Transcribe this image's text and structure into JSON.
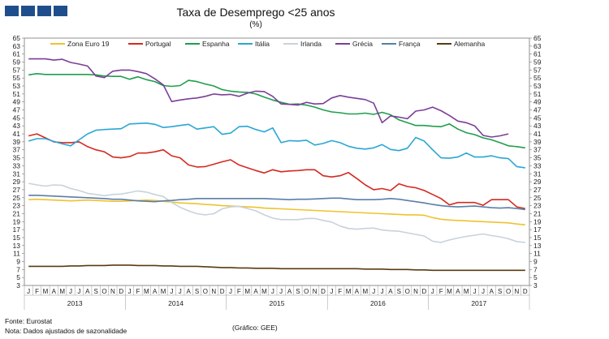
{
  "header": {
    "title": "Taxa de Desemprego <25 anos",
    "subtitle": "(%)"
  },
  "footer": {
    "source": "Fonte: Eurostat",
    "note": "Nota: Dados ajustados de sazonalidade",
    "credit": "(Gráfico: GEE)"
  },
  "chart_data": {
    "type": "line",
    "title": "Taxa de Desemprego <25 anos",
    "ylabel": "(%)",
    "ylim": [
      3,
      65
    ],
    "yticks": [
      3,
      5,
      7,
      9,
      11,
      13,
      15,
      17,
      19,
      21,
      23,
      25,
      27,
      29,
      31,
      33,
      35,
      37,
      39,
      41,
      43,
      45,
      47,
      49,
      51,
      53,
      55,
      57,
      59,
      61,
      63,
      65
    ],
    "months": [
      "J",
      "F",
      "M",
      "A",
      "M",
      "J",
      "J",
      "A",
      "S",
      "O",
      "N",
      "D"
    ],
    "years": [
      "2013",
      "2014",
      "2015",
      "2016",
      "2017"
    ],
    "grid": false,
    "legend_position": "top",
    "series": [
      {
        "name": "Zona Euro 19",
        "color": "#f0c22e",
        "values": [
          24.5,
          24.6,
          24.5,
          24.4,
          24.3,
          24.2,
          24.3,
          24.4,
          24.3,
          24.2,
          24.1,
          24.1,
          24.2,
          24.3,
          24.4,
          24.3,
          24.1,
          23.9,
          23.7,
          23.6,
          23.5,
          23.3,
          23.2,
          23.0,
          22.9,
          22.8,
          22.7,
          22.6,
          22.4,
          22.3,
          22.2,
          22.1,
          22.0,
          21.9,
          21.8,
          21.7,
          21.6,
          21.5,
          21.4,
          21.3,
          21.2,
          21.1,
          21.0,
          20.9,
          20.8,
          20.7,
          20.7,
          20.6,
          20.0,
          19.6,
          19.4,
          19.3,
          19.2,
          19.1,
          19.0,
          18.9,
          18.8,
          18.7,
          18.4,
          18.2
        ]
      },
      {
        "name": "Portugal",
        "color": "#d42a20",
        "values": [
          40.5,
          41.0,
          40.0,
          39.0,
          38.8,
          38.8,
          39.0,
          37.8,
          37.0,
          36.5,
          35.2,
          35.0,
          35.3,
          36.2,
          36.2,
          36.5,
          37.0,
          35.5,
          35.0,
          33.2,
          32.7,
          32.8,
          33.4,
          34.0,
          34.5,
          33.2,
          32.5,
          31.8,
          31.2,
          32.0,
          31.5,
          31.7,
          31.8,
          32.0,
          32.0,
          30.5,
          30.2,
          30.5,
          31.3,
          29.8,
          28.2,
          27.0,
          27.3,
          26.8,
          28.5,
          27.8,
          27.5,
          26.8,
          25.8,
          24.8,
          23.2,
          23.8,
          23.8,
          23.8,
          23.1,
          24.5,
          24.5,
          24.5,
          22.7,
          22.3
        ]
      },
      {
        "name": "Espanha",
        "color": "#1f9e4c",
        "values": [
          55.8,
          56.1,
          55.9,
          55.9,
          55.9,
          55.9,
          55.9,
          55.9,
          55.8,
          55.5,
          55.4,
          55.4,
          54.7,
          55.3,
          54.6,
          54.1,
          53.1,
          52.9,
          53.1,
          54.4,
          54.1,
          53.5,
          53.0,
          52.1,
          51.7,
          51.5,
          51.4,
          51.0,
          50.2,
          49.5,
          48.9,
          48.4,
          48.5,
          48.2,
          47.7,
          47.0,
          46.5,
          46.3,
          46.0,
          46.0,
          46.2,
          45.9,
          46.4,
          45.8,
          44.5,
          43.8,
          43.1,
          43.1,
          42.9,
          42.8,
          43.5,
          42.2,
          41.3,
          40.8,
          40.0,
          39.5,
          38.8,
          38.0,
          37.8,
          37.5
        ]
      },
      {
        "name": "Itália",
        "color": "#2aa6d6",
        "values": [
          39.2,
          39.8,
          39.8,
          39.1,
          38.5,
          38.0,
          39.5,
          41.0,
          41.9,
          42.1,
          42.2,
          42.3,
          43.5,
          43.6,
          43.7,
          43.4,
          42.6,
          42.8,
          43.1,
          43.4,
          42.2,
          42.5,
          42.8,
          40.9,
          41.2,
          42.8,
          42.9,
          42.1,
          41.5,
          42.5,
          38.8,
          39.3,
          39.2,
          39.4,
          38.2,
          38.6,
          39.3,
          38.8,
          37.9,
          37.4,
          37.2,
          37.5,
          38.3,
          37.1,
          36.8,
          37.4,
          40.1,
          39.2,
          37.0,
          35.0,
          34.9,
          35.2,
          36.2,
          35.2,
          35.2,
          35.5,
          35.0,
          34.8,
          32.8,
          32.5
        ]
      },
      {
        "name": "Irlanda",
        "color": "#c8d2dc",
        "values": [
          28.6,
          28.2,
          27.9,
          28.2,
          28.1,
          27.3,
          26.8,
          26.1,
          25.8,
          25.5,
          25.8,
          25.9,
          26.3,
          26.7,
          26.4,
          25.8,
          25.3,
          23.8,
          22.6,
          21.7,
          21.0,
          20.7,
          21.0,
          22.2,
          22.7,
          22.8,
          22.3,
          21.7,
          20.7,
          19.9,
          19.5,
          19.5,
          19.5,
          19.8,
          19.8,
          19.3,
          18.9,
          17.9,
          17.3,
          17.1,
          17.3,
          17.4,
          16.9,
          16.7,
          16.6,
          16.2,
          15.8,
          15.4,
          14.1,
          13.8,
          14.4,
          14.9,
          15.3,
          15.6,
          15.9,
          15.5,
          15.2,
          14.7,
          14.0,
          13.8
        ]
      },
      {
        "name": "Grécia",
        "color": "#7b3f98",
        "values": [
          59.8,
          59.8,
          59.8,
          59.5,
          59.7,
          58.9,
          58.5,
          58.0,
          55.5,
          55.1,
          56.7,
          57.0,
          57.0,
          56.6,
          56.1,
          54.8,
          53.3,
          49.1,
          49.5,
          49.8,
          50.0,
          50.4,
          51.0,
          50.8,
          50.9,
          50.4,
          51.2,
          51.7,
          51.6,
          50.4,
          48.5,
          48.4,
          48.2,
          48.9,
          48.5,
          48.6,
          50.0,
          50.6,
          50.2,
          49.9,
          49.6,
          48.7,
          43.8,
          45.5,
          45.2,
          44.8,
          46.7,
          47.0,
          47.7,
          46.8,
          45.6,
          44.2,
          43.8,
          43.0,
          40.6,
          40.2,
          40.5,
          41.0
        ]
      },
      {
        "name": "França",
        "color": "#5a7ea8",
        "values": [
          25.6,
          25.6,
          25.5,
          25.4,
          25.3,
          25.2,
          25.1,
          25.0,
          24.9,
          24.8,
          24.6,
          24.6,
          24.4,
          24.2,
          24.1,
          24.0,
          24.2,
          24.3,
          24.5,
          24.6,
          24.8,
          24.8,
          24.8,
          24.8,
          24.8,
          24.8,
          24.8,
          24.8,
          24.8,
          24.7,
          24.6,
          24.5,
          24.6,
          24.6,
          24.7,
          24.8,
          24.9,
          24.9,
          24.7,
          24.5,
          24.5,
          24.5,
          24.6,
          24.8,
          24.6,
          24.3,
          24.0,
          23.7,
          23.3,
          23.0,
          22.8,
          22.7,
          22.8,
          22.9,
          22.7,
          22.5,
          22.4,
          22.5,
          22.3,
          22.0
        ]
      },
      {
        "name": "Alemanha",
        "color": "#5a3a12",
        "values": [
          7.8,
          7.8,
          7.8,
          7.8,
          7.8,
          7.9,
          7.9,
          8.0,
          8.0,
          8.0,
          8.1,
          8.1,
          8.1,
          8.0,
          8.0,
          8.0,
          7.9,
          7.9,
          7.8,
          7.8,
          7.8,
          7.7,
          7.6,
          7.5,
          7.5,
          7.4,
          7.4,
          7.3,
          7.3,
          7.3,
          7.2,
          7.2,
          7.2,
          7.2,
          7.2,
          7.2,
          7.2,
          7.2,
          7.2,
          7.2,
          7.1,
          7.1,
          7.1,
          7.0,
          7.0,
          7.0,
          6.9,
          6.9,
          6.8,
          6.8,
          6.8,
          6.8,
          6.8,
          6.8,
          6.8,
          6.8,
          6.8,
          6.8,
          6.8,
          6.8
        ]
      }
    ]
  }
}
